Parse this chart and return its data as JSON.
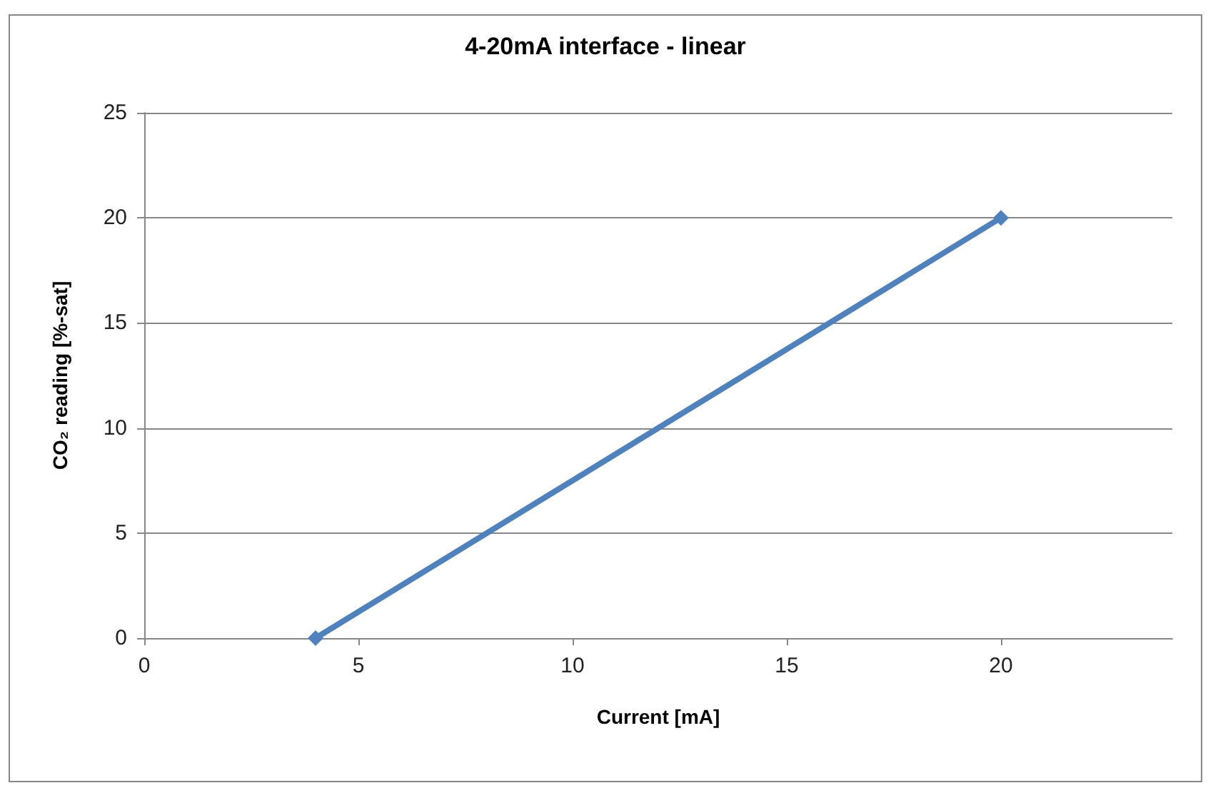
{
  "chart_data": {
    "type": "line",
    "title": "4-20mA interface - linear",
    "xlabel": "Current [mA]",
    "ylabel": "CO₂ reading [%-sat]",
    "x": [
      4,
      20
    ],
    "series": [
      {
        "color": "#4f81bd",
        "values": [
          0,
          20
        ]
      }
    ],
    "xlim": [
      0,
      24
    ],
    "xticks": [
      0,
      5,
      10,
      15,
      20
    ],
    "ylim": [
      0,
      25
    ],
    "yticks": [
      0,
      5,
      10,
      15,
      20,
      25
    ],
    "grid": "y",
    "marker": "diamond",
    "line_style": "solid"
  }
}
